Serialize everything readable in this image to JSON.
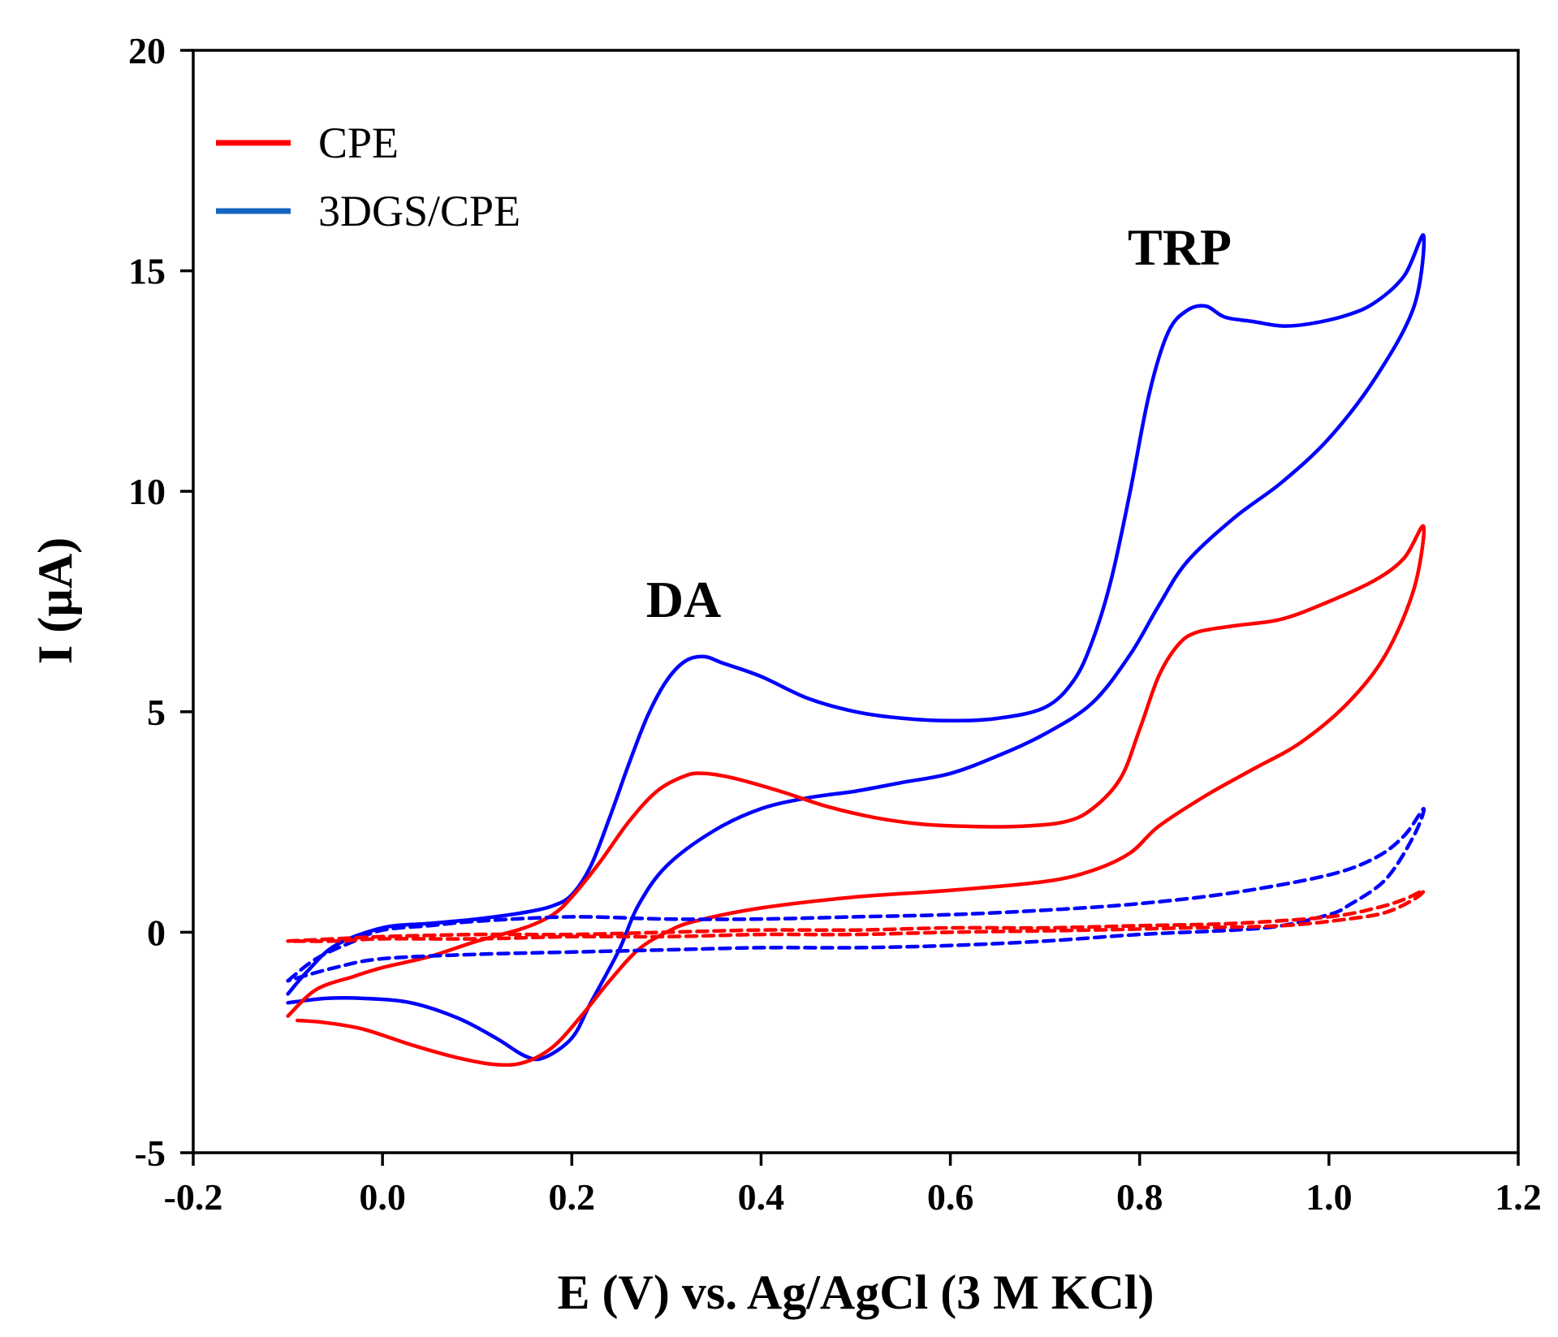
{
  "chart_data": {
    "type": "line",
    "title": "",
    "xlabel": "E (V) vs. Ag/AgCl (3 M KCl)",
    "ylabel": "I (µA)",
    "xlim": [
      -0.2,
      1.2
    ],
    "ylim": [
      -5,
      20
    ],
    "xticks": [
      "-0.2",
      "0.0",
      "0.2",
      "0.4",
      "0.6",
      "0.8",
      "1.0",
      "1.2"
    ],
    "xtick_values": [
      -0.2,
      0.0,
      0.2,
      0.4,
      0.6,
      0.8,
      1.0,
      1.2
    ],
    "yticks": [
      "-5",
      "0",
      "5",
      "10",
      "15",
      "20"
    ],
    "ytick_values": [
      -5,
      0,
      5,
      10,
      15,
      20
    ],
    "grid": false,
    "legend_position": "top-left",
    "legend": [
      {
        "label": "CPE",
        "color": "#ff0000"
      },
      {
        "label": "3DGS/CPE",
        "color": "#1565c0"
      }
    ],
    "annotations": [
      {
        "text": "DA",
        "x": 0.32,
        "y": 7.5
      },
      {
        "text": "TRP",
        "x": 0.84,
        "y": 15.5
      }
    ],
    "series": [
      {
        "name": "3DGS/CPE (with DA + TRP)",
        "color": "#0000ff",
        "style": "solid",
        "points": [
          [
            -0.1,
            -1.4
          ],
          [
            -0.08,
            -0.9
          ],
          [
            -0.05,
            -0.3
          ],
          [
            0.0,
            0.1
          ],
          [
            0.05,
            0.2
          ],
          [
            0.1,
            0.3
          ],
          [
            0.15,
            0.45
          ],
          [
            0.18,
            0.6
          ],
          [
            0.2,
            0.85
          ],
          [
            0.22,
            1.5
          ],
          [
            0.24,
            2.6
          ],
          [
            0.26,
            3.8
          ],
          [
            0.28,
            4.9
          ],
          [
            0.3,
            5.7
          ],
          [
            0.32,
            6.15
          ],
          [
            0.34,
            6.25
          ],
          [
            0.36,
            6.1
          ],
          [
            0.4,
            5.8
          ],
          [
            0.45,
            5.3
          ],
          [
            0.5,
            5.0
          ],
          [
            0.55,
            4.85
          ],
          [
            0.6,
            4.8
          ],
          [
            0.65,
            4.85
          ],
          [
            0.7,
            5.1
          ],
          [
            0.73,
            5.7
          ],
          [
            0.75,
            6.6
          ],
          [
            0.77,
            8.0
          ],
          [
            0.79,
            10.0
          ],
          [
            0.81,
            12.2
          ],
          [
            0.83,
            13.6
          ],
          [
            0.85,
            14.1
          ],
          [
            0.87,
            14.2
          ],
          [
            0.89,
            13.95
          ],
          [
            0.92,
            13.85
          ],
          [
            0.95,
            13.75
          ],
          [
            0.98,
            13.8
          ],
          [
            1.02,
            14.0
          ],
          [
            1.05,
            14.3
          ],
          [
            1.08,
            14.9
          ],
          [
            1.1,
            15.8
          ],
          [
            1.09,
            14.2
          ],
          [
            1.05,
            12.6
          ],
          [
            1.0,
            11.2
          ],
          [
            0.95,
            10.2
          ],
          [
            0.9,
            9.4
          ],
          [
            0.85,
            8.4
          ],
          [
            0.82,
            7.4
          ],
          [
            0.79,
            6.3
          ],
          [
            0.75,
            5.2
          ],
          [
            0.7,
            4.5
          ],
          [
            0.65,
            4.0
          ],
          [
            0.6,
            3.6
          ],
          [
            0.55,
            3.4
          ],
          [
            0.5,
            3.2
          ],
          [
            0.45,
            3.05
          ],
          [
            0.4,
            2.8
          ],
          [
            0.35,
            2.3
          ],
          [
            0.3,
            1.5
          ],
          [
            0.27,
            0.6
          ],
          [
            0.25,
            -0.4
          ],
          [
            0.22,
            -1.6
          ],
          [
            0.2,
            -2.4
          ],
          [
            0.17,
            -2.85
          ],
          [
            0.15,
            -2.8
          ],
          [
            0.12,
            -2.4
          ],
          [
            0.08,
            -1.95
          ],
          [
            0.03,
            -1.6
          ],
          [
            -0.02,
            -1.5
          ],
          [
            -0.06,
            -1.5
          ],
          [
            -0.1,
            -1.6
          ]
        ]
      },
      {
        "name": "CPE (with DA + TRP)",
        "color": "#ff0000",
        "style": "solid",
        "points": [
          [
            -0.1,
            -1.9
          ],
          [
            -0.07,
            -1.3
          ],
          [
            -0.03,
            -1.0
          ],
          [
            0.0,
            -0.8
          ],
          [
            0.05,
            -0.55
          ],
          [
            0.1,
            -0.2
          ],
          [
            0.15,
            0.1
          ],
          [
            0.18,
            0.4
          ],
          [
            0.2,
            0.8
          ],
          [
            0.23,
            1.6
          ],
          [
            0.26,
            2.5
          ],
          [
            0.29,
            3.2
          ],
          [
            0.32,
            3.55
          ],
          [
            0.34,
            3.6
          ],
          [
            0.37,
            3.5
          ],
          [
            0.42,
            3.2
          ],
          [
            0.47,
            2.85
          ],
          [
            0.52,
            2.6
          ],
          [
            0.57,
            2.45
          ],
          [
            0.62,
            2.4
          ],
          [
            0.67,
            2.4
          ],
          [
            0.72,
            2.5
          ],
          [
            0.75,
            2.8
          ],
          [
            0.78,
            3.5
          ],
          [
            0.8,
            4.6
          ],
          [
            0.82,
            5.8
          ],
          [
            0.84,
            6.5
          ],
          [
            0.86,
            6.8
          ],
          [
            0.9,
            6.95
          ],
          [
            0.95,
            7.1
          ],
          [
            1.0,
            7.5
          ],
          [
            1.05,
            8.0
          ],
          [
            1.08,
            8.5
          ],
          [
            1.1,
            9.2
          ],
          [
            1.09,
            7.8
          ],
          [
            1.06,
            6.3
          ],
          [
            1.02,
            5.2
          ],
          [
            0.97,
            4.3
          ],
          [
            0.92,
            3.7
          ],
          [
            0.87,
            3.1
          ],
          [
            0.82,
            2.4
          ],
          [
            0.79,
            1.8
          ],
          [
            0.75,
            1.4
          ],
          [
            0.7,
            1.15
          ],
          [
            0.6,
            0.95
          ],
          [
            0.5,
            0.8
          ],
          [
            0.4,
            0.55
          ],
          [
            0.33,
            0.25
          ],
          [
            0.3,
            0.0
          ],
          [
            0.27,
            -0.4
          ],
          [
            0.24,
            -1.1
          ],
          [
            0.21,
            -1.9
          ],
          [
            0.18,
            -2.6
          ],
          [
            0.15,
            -2.95
          ],
          [
            0.12,
            -3.0
          ],
          [
            0.08,
            -2.85
          ],
          [
            0.03,
            -2.55
          ],
          [
            -0.02,
            -2.2
          ],
          [
            -0.06,
            -2.05
          ],
          [
            -0.09,
            -2.0
          ]
        ]
      },
      {
        "name": "3DGS/CPE (blank)",
        "color": "#0000ff",
        "style": "dashed",
        "points": [
          [
            -0.1,
            -1.1
          ],
          [
            -0.07,
            -0.6
          ],
          [
            -0.03,
            -0.2
          ],
          [
            0.0,
            0.05
          ],
          [
            0.05,
            0.15
          ],
          [
            0.1,
            0.25
          ],
          [
            0.2,
            0.35
          ],
          [
            0.3,
            0.3
          ],
          [
            0.4,
            0.3
          ],
          [
            0.5,
            0.35
          ],
          [
            0.6,
            0.4
          ],
          [
            0.7,
            0.5
          ],
          [
            0.8,
            0.65
          ],
          [
            0.9,
            0.9
          ],
          [
            1.0,
            1.3
          ],
          [
            1.05,
            1.7
          ],
          [
            1.08,
            2.2
          ],
          [
            1.1,
            2.8
          ],
          [
            1.09,
            2.2
          ],
          [
            1.06,
            1.2
          ],
          [
            1.02,
            0.6
          ],
          [
            1.0,
            0.4
          ],
          [
            0.95,
            0.15
          ],
          [
            0.9,
            0.05
          ],
          [
            0.8,
            -0.05
          ],
          [
            0.7,
            -0.2
          ],
          [
            0.6,
            -0.3
          ],
          [
            0.5,
            -0.35
          ],
          [
            0.4,
            -0.35
          ],
          [
            0.3,
            -0.4
          ],
          [
            0.2,
            -0.45
          ],
          [
            0.1,
            -0.5
          ],
          [
            0.0,
            -0.6
          ],
          [
            -0.05,
            -0.8
          ],
          [
            -0.1,
            -1.1
          ]
        ]
      },
      {
        "name": "CPE (blank)",
        "color": "#ff0000",
        "style": "dashed",
        "points": [
          [
            -0.1,
            -0.2
          ],
          [
            -0.05,
            -0.15
          ],
          [
            0.0,
            -0.1
          ],
          [
            0.1,
            -0.05
          ],
          [
            0.2,
            -0.05
          ],
          [
            0.3,
            0.0
          ],
          [
            0.4,
            0.05
          ],
          [
            0.5,
            0.05
          ],
          [
            0.6,
            0.1
          ],
          [
            0.7,
            0.1
          ],
          [
            0.8,
            0.15
          ],
          [
            0.9,
            0.2
          ],
          [
            1.0,
            0.35
          ],
          [
            1.05,
            0.55
          ],
          [
            1.08,
            0.75
          ],
          [
            1.1,
            0.95
          ],
          [
            1.09,
            0.75
          ],
          [
            1.06,
            0.45
          ],
          [
            1.02,
            0.3
          ],
          [
            0.95,
            0.15
          ],
          [
            0.85,
            0.1
          ],
          [
            0.75,
            0.05
          ],
          [
            0.6,
            0.0
          ],
          [
            0.5,
            -0.05
          ],
          [
            0.4,
            -0.05
          ],
          [
            0.3,
            -0.1
          ],
          [
            0.2,
            -0.1
          ],
          [
            0.1,
            -0.15
          ],
          [
            0.0,
            -0.15
          ],
          [
            -0.05,
            -0.2
          ],
          [
            -0.1,
            -0.2
          ]
        ]
      }
    ]
  }
}
